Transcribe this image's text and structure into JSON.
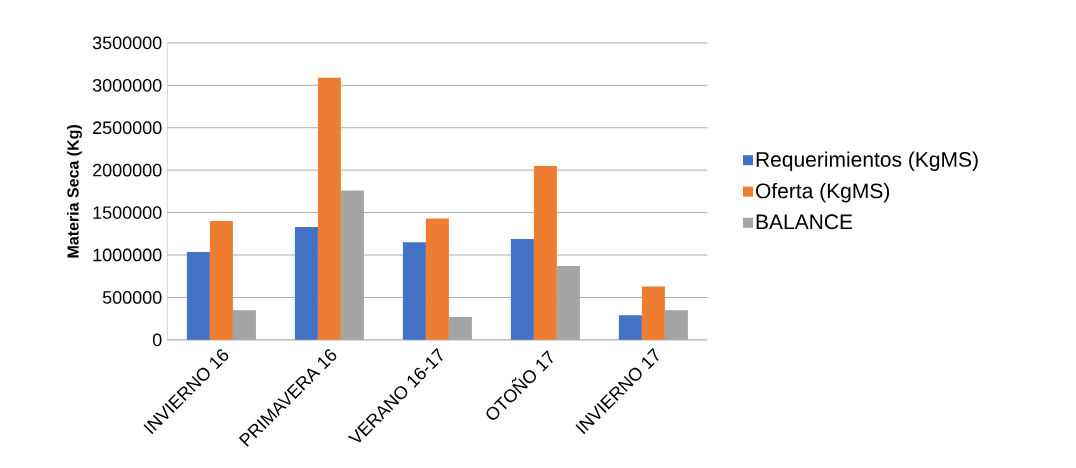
{
  "chart_data": {
    "type": "bar",
    "ylabel": "Materia Seca (Kg)",
    "categories": [
      "INVIERNO 16",
      "PRIMAVERA 16",
      "VERANO 16-17",
      "OTOÑO 17",
      "INVIERNO 17"
    ],
    "series": [
      {
        "name": "Requerimientos (KgMS)",
        "color": "#4472c4",
        "values": [
          1035000,
          1330000,
          1150000,
          1190000,
          290000
        ]
      },
      {
        "name": "Oferta (KgMS)",
        "color": "#ed7d31",
        "values": [
          1400000,
          3090000,
          1430000,
          2050000,
          630000
        ]
      },
      {
        "name": "BALANCE",
        "color": "#a5a5a5",
        "values": [
          350000,
          1760000,
          270000,
          870000,
          350000
        ]
      }
    ],
    "ylim": [
      0,
      3500000
    ],
    "yticks": [
      0,
      500000,
      1000000,
      1500000,
      2000000,
      2500000,
      3000000,
      3500000
    ],
    "grid": "y",
    "legend": "right"
  }
}
